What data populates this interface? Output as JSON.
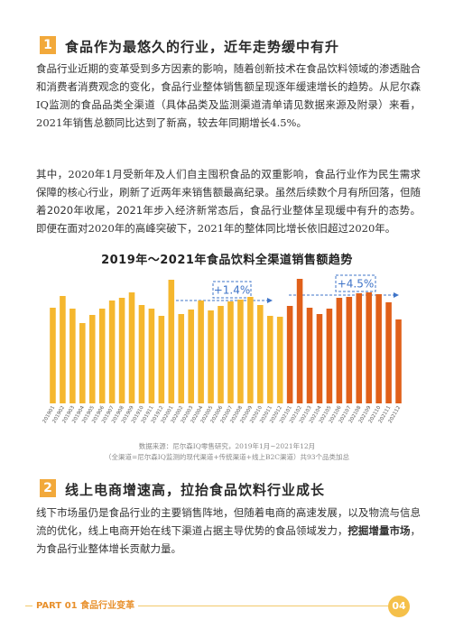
{
  "section1": {
    "number": "1",
    "title": "食品作为最悠久的行业，近年走势缓中有升",
    "paragraph1": "食品行业近期的变革受到多方因素的影响，随着创新技术在食品饮料领域的渗透融合和消费者消费观念的变化，食品行业整体销售额呈现逐年缓速增长的趋势。从尼尔森IQ监测的食品品类全渠道（具体品类及监测渠道清单请见数据来源及附录）来看，2021年销售总额同比达到了新高，较去年同期增长4.5%。",
    "paragraph2": [
      "其中，2020年1月受新年及人们自主囤积食品的双重影响，食品行业作为民生需求保障的核心行业，刷新了近两年来销售额最高纪录。虽然后续数个月有所回落，",
      "但随着2020年收尾，2021年步入经济新常态后，食品行业整体呈现缓中有升的态势。",
      "即便在面对2020年的高峰突破下，2021年的整体同比增长依旧超过2020年。"
    ]
  },
  "chart_data": {
    "type": "bar",
    "title": "2019年～2021年食品饮料全渠道销售额趋势",
    "categories": [
      "201901",
      "201902",
      "201903",
      "201904",
      "201905",
      "201906",
      "201907",
      "201908",
      "201909",
      "201910",
      "201911",
      "201912",
      "202001",
      "202002",
      "202003",
      "202004",
      "202005",
      "202006",
      "202007",
      "202008",
      "202009",
      "202010",
      "202011",
      "202012",
      "202101",
      "202102",
      "202103",
      "202104",
      "202105",
      "202106",
      "202107",
      "202108",
      "202109",
      "202110",
      "202111",
      "202112"
    ],
    "values": [
      106,
      119,
      105,
      89,
      98,
      105,
      114,
      117,
      123,
      109,
      105,
      97,
      137,
      99,
      104,
      114,
      103,
      108,
      113,
      115,
      118,
      109,
      97,
      96,
      108,
      138,
      106,
      99,
      105,
      117,
      118,
      122,
      123,
      121,
      112,
      93
    ],
    "colors": [
      "#f5b72e",
      "#f5b72e",
      "#f5b72e",
      "#f5b72e",
      "#f5b72e",
      "#f5b72e",
      "#f5b72e",
      "#f5b72e",
      "#f5b72e",
      "#f5b72e",
      "#f5b72e",
      "#f5b72e",
      "#f5b72e",
      "#f5b72e",
      "#f5b72e",
      "#f5b72e",
      "#f5b72e",
      "#f5b72e",
      "#f5b72e",
      "#f5b72e",
      "#f5b72e",
      "#f5b72e",
      "#f5b72e",
      "#f5b72e",
      "#e0601a",
      "#e0601a",
      "#e0601a",
      "#e0601a",
      "#e0601a",
      "#e0601a",
      "#e0601a",
      "#e0601a",
      "#e0601a",
      "#e0601a",
      "#e0601a",
      "#e0601a"
    ],
    "ylim": [
      0,
      150
    ],
    "annotations": [
      "+1.4%",
      "+4.5%"
    ],
    "source": [
      "数据来源：尼尔森IQ零售研究，2019年1月~2021年12月",
      "（全渠道=尼尔森IQ监测的现代渠道+传统渠道+线上B2C渠道）共93个品类加总"
    ]
  },
  "section2": {
    "number": "2",
    "title": "线上电商增速高，拉抬食品饮料行业成长",
    "paragraph": [
      "线下市场虽仍是食品行业的主要销售阵地，但随着电商的高速发展，以及物流与信息流的优化，线上电商开始在线下渠道占据主导优势的食品领域发力，",
      "挖掘增量市场",
      "，为食品行业整体增长贡献力量。"
    ]
  },
  "footer": {
    "part": "PART 01 食品行业变革",
    "page": "04"
  }
}
